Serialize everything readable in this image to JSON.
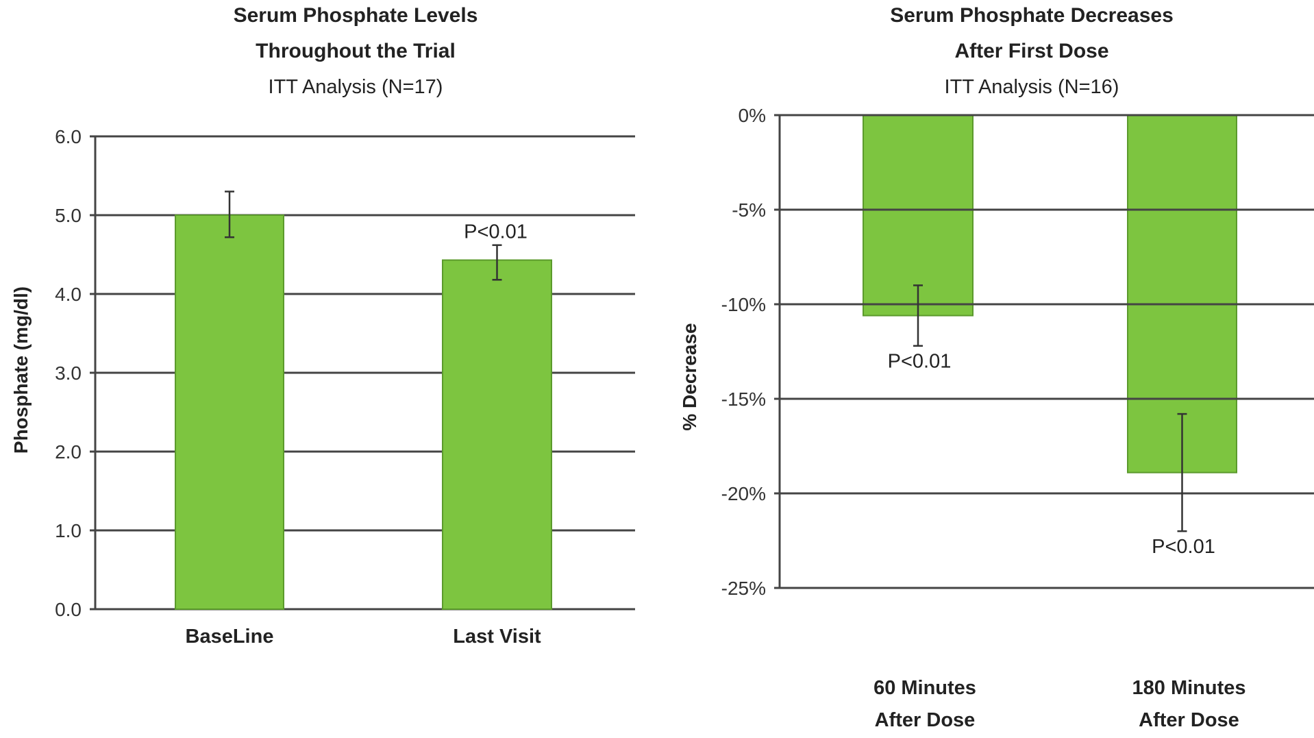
{
  "colors": {
    "bar": "#7dc540",
    "bar_edge": "#5b9a2c",
    "grid": "#444444",
    "error": "#333333"
  },
  "chart_data": [
    {
      "type": "bar",
      "title": "Serum Phosphate Levels",
      "title_line2": "Throughout the Trial",
      "subtitle": "ITT Analysis (N=17)",
      "xlabel": "",
      "ylabel": "Phosphate (mg/dl)",
      "ylim": [
        0,
        6
      ],
      "yticks": [
        0,
        1,
        2,
        3,
        4,
        5,
        6
      ],
      "ytick_labels": [
        "0.0",
        "1.0",
        "2.0",
        "3.0",
        "4.0",
        "5.0",
        "6.0"
      ],
      "grid": true,
      "categories": [
        "BaseLine",
        "Last Visit"
      ],
      "values": [
        5.0,
        4.43
      ],
      "error_low": [
        4.72,
        4.18
      ],
      "error_high": [
        5.3,
        4.62
      ],
      "annotations": [
        "",
        "P<0.01"
      ]
    },
    {
      "type": "bar",
      "title": "Serum Phosphate Decreases",
      "title_line2": "After First Dose",
      "subtitle": "ITT Analysis (N=16)",
      "xlabel": "",
      "ylabel": "% Decrease",
      "ylim": [
        -25,
        0
      ],
      "yticks": [
        0,
        -5,
        -10,
        -15,
        -20,
        -25
      ],
      "ytick_labels": [
        "0%",
        "-5%",
        "-10%",
        "-15%",
        "-20%",
        "-25%"
      ],
      "grid": true,
      "categories": [
        "60 Minutes",
        "180 Minutes"
      ],
      "categories_line2": [
        "After Dose",
        "After Dose"
      ],
      "values": [
        -10.6,
        -18.9
      ],
      "error_low": [
        -12.2,
        -22.0
      ],
      "error_high": [
        -9.0,
        -15.8
      ],
      "annotations": [
        "P<0.01",
        "P<0.01"
      ]
    }
  ]
}
